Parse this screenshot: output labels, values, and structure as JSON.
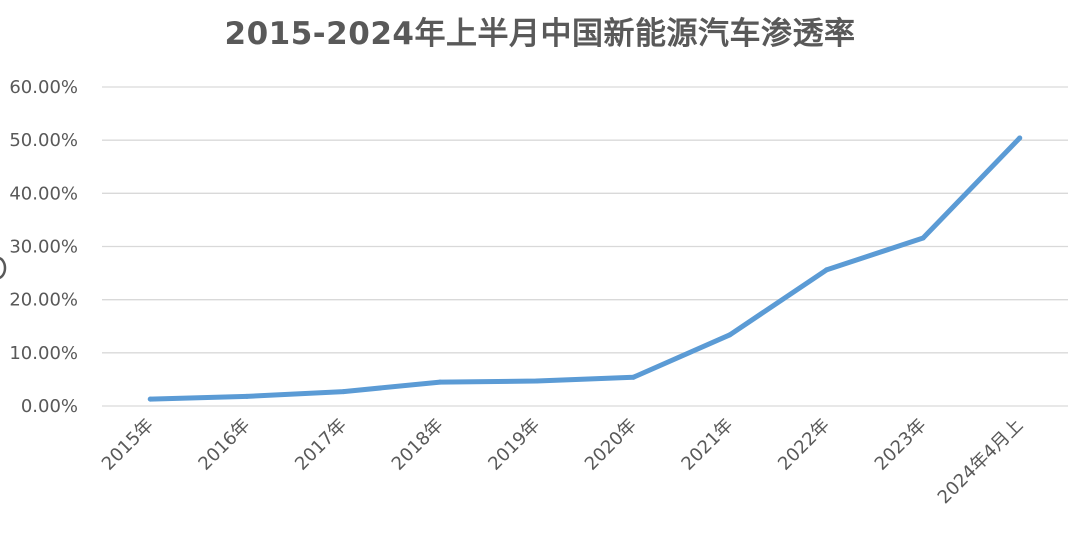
{
  "chart_data": {
    "type": "line",
    "title": "2015-2024年上半月中国新能源汽车渗透率",
    "xlabel": "",
    "ylabel": "",
    "categories": [
      "2015年",
      "2016年",
      "2017年",
      "2018年",
      "2019年",
      "2020年",
      "2021年",
      "2022年",
      "2023年",
      "2024年4月上"
    ],
    "series": [
      {
        "values": [
          1.3,
          1.8,
          2.7,
          4.5,
          4.7,
          5.4,
          13.4,
          25.6,
          31.6,
          50.4
        ]
      }
    ],
    "ylim": [
      0,
      60
    ],
    "y_tick_values": [
      0,
      10,
      20,
      30,
      40,
      50,
      60
    ],
    "y_tick_labels": [
      "0.00%",
      "10.00%",
      "20.00%",
      "30.00%",
      "40.00%",
      "50.00%",
      "60.00%"
    ],
    "grid": true,
    "legend": "none",
    "colors": {
      "series_line": "#5b9bd5",
      "grid": "#d9d9d9",
      "text": "#595959"
    }
  }
}
